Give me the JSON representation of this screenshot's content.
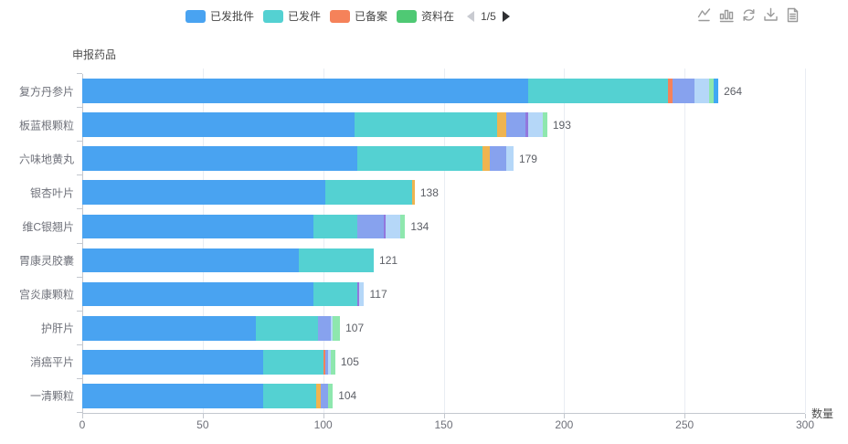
{
  "toolbox": {
    "icons": [
      "line-chart-icon",
      "bar-chart-icon",
      "restore-icon",
      "download-icon",
      "data-view-icon"
    ]
  },
  "chart_data": {
    "type": "bar",
    "orientation": "horizontal",
    "stacked": true,
    "title": "",
    "xlabel": "数量",
    "ylabel": "申报药品",
    "xlim": [
      0,
      300
    ],
    "xticks": [
      0,
      50,
      100,
      150,
      200,
      250,
      300
    ],
    "grid": true,
    "legend_position": "top-center",
    "legend_pagination": "1/5",
    "legend": [
      {
        "label": "已发批件",
        "color": "#49a3f1"
      },
      {
        "label": "已发件",
        "color": "#54d1d2"
      },
      {
        "label": "已备案",
        "color": "#f5825a"
      },
      {
        "label": "资料在",
        "color": "#4fc974"
      }
    ],
    "palette": {
      "blue": "#49a3f1",
      "teal": "#54d1d2",
      "orange": "#f5825a",
      "yellow": "#efb450",
      "periwinkle": "#87a2ee",
      "purple": "#9277dd",
      "paleblue": "#b5d7f8",
      "lightgreen": "#8ee7ae",
      "green": "#4fc974",
      "brightblue": "#3fa8f4"
    },
    "categories": [
      "复方丹参片",
      "板蓝根颗粒",
      "六味地黄丸",
      "银杏叶片",
      "维C银翘片",
      "胃康灵胶囊",
      "宫炎康颗粒",
      "护肝片",
      "消癌平片",
      "一清颗粒"
    ],
    "totals": [
      264,
      193,
      179,
      138,
      134,
      121,
      117,
      107,
      105,
      104
    ],
    "bars": [
      {
        "label": "复方丹参片",
        "total": 264,
        "segments": [
          {
            "color": "blue",
            "value": 185
          },
          {
            "color": "teal",
            "value": 58
          },
          {
            "color": "orange",
            "value": 2
          },
          {
            "color": "periwinkle",
            "value": 9
          },
          {
            "color": "paleblue",
            "value": 6
          },
          {
            "color": "lightgreen",
            "value": 2
          },
          {
            "color": "brightblue",
            "value": 2
          }
        ]
      },
      {
        "label": "板蓝根颗粒",
        "total": 193,
        "segments": [
          {
            "color": "blue",
            "value": 113
          },
          {
            "color": "teal",
            "value": 59
          },
          {
            "color": "yellow",
            "value": 4
          },
          {
            "color": "periwinkle",
            "value": 8
          },
          {
            "color": "purple",
            "value": 1
          },
          {
            "color": "paleblue",
            "value": 6
          },
          {
            "color": "lightgreen",
            "value": 2
          }
        ]
      },
      {
        "label": "六味地黄丸",
        "total": 179,
        "segments": [
          {
            "color": "blue",
            "value": 114
          },
          {
            "color": "teal",
            "value": 52
          },
          {
            "color": "yellow",
            "value": 3
          },
          {
            "color": "periwinkle",
            "value": 7
          },
          {
            "color": "paleblue",
            "value": 3
          }
        ]
      },
      {
        "label": "银杏叶片",
        "total": 138,
        "segments": [
          {
            "color": "blue",
            "value": 101
          },
          {
            "color": "teal",
            "value": 36
          },
          {
            "color": "yellow",
            "value": 1
          }
        ]
      },
      {
        "label": "维C银翘片",
        "total": 134,
        "segments": [
          {
            "color": "blue",
            "value": 96
          },
          {
            "color": "teal",
            "value": 18
          },
          {
            "color": "periwinkle",
            "value": 11
          },
          {
            "color": "purple",
            "value": 1
          },
          {
            "color": "paleblue",
            "value": 6
          },
          {
            "color": "lightgreen",
            "value": 2
          }
        ]
      },
      {
        "label": "胃康灵胶囊",
        "total": 121,
        "segments": [
          {
            "color": "blue",
            "value": 90
          },
          {
            "color": "teal",
            "value": 31
          }
        ]
      },
      {
        "label": "宫炎康颗粒",
        "total": 117,
        "segments": [
          {
            "color": "blue",
            "value": 96
          },
          {
            "color": "teal",
            "value": 18
          },
          {
            "color": "purple",
            "value": 1
          },
          {
            "color": "paleblue",
            "value": 2
          }
        ]
      },
      {
        "label": "护肝片",
        "total": 107,
        "segments": [
          {
            "color": "blue",
            "value": 72
          },
          {
            "color": "teal",
            "value": 26
          },
          {
            "color": "periwinkle",
            "value": 5
          },
          {
            "color": "paleblue",
            "value": 1
          },
          {
            "color": "lightgreen",
            "value": 3
          }
        ]
      },
      {
        "label": "消癌平片",
        "total": 105,
        "segments": [
          {
            "color": "blue",
            "value": 75
          },
          {
            "color": "teal",
            "value": 25
          },
          {
            "color": "orange",
            "value": 1
          },
          {
            "color": "periwinkle",
            "value": 1
          },
          {
            "color": "paleblue",
            "value": 1
          },
          {
            "color": "lightgreen",
            "value": 2
          }
        ]
      },
      {
        "label": "一清颗粒",
        "total": 104,
        "segments": [
          {
            "color": "blue",
            "value": 75
          },
          {
            "color": "teal",
            "value": 22
          },
          {
            "color": "yellow",
            "value": 2
          },
          {
            "color": "periwinkle",
            "value": 3
          },
          {
            "color": "lightgreen",
            "value": 2
          }
        ]
      }
    ]
  }
}
